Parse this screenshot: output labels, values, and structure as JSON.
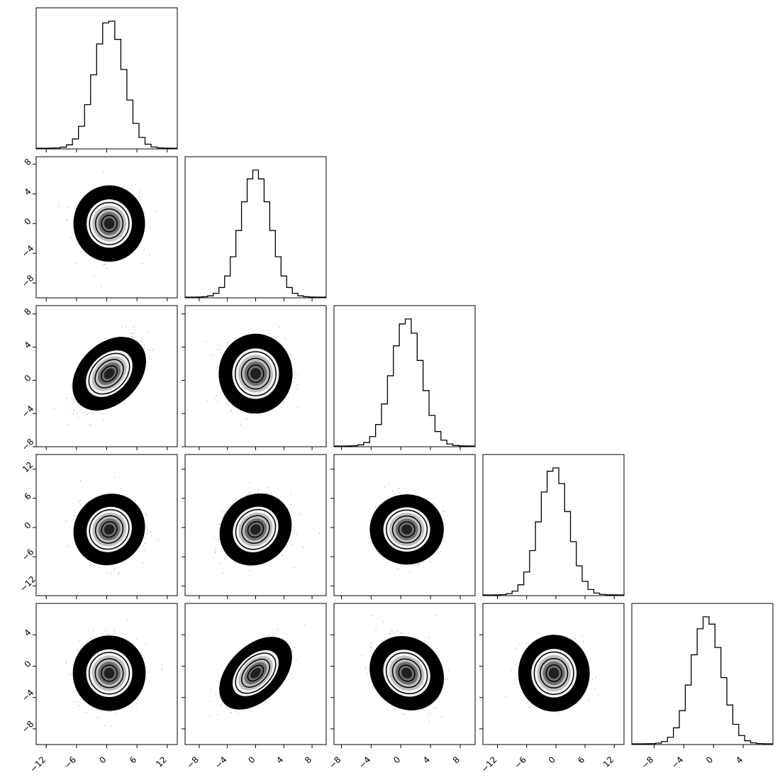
{
  "chart_data": {
    "type": "corner",
    "title": "",
    "grid": false,
    "parameters": [
      {
        "xlim": [
          -14,
          14
        ],
        "ylim": [
          -13,
          14
        ],
        "xticks": [
          -12,
          -6,
          0,
          6,
          12
        ],
        "yticks": [
          -12,
          -6,
          0,
          6,
          12
        ],
        "mean": 0.5,
        "sd": 2.9,
        "binw": 1.2
      },
      {
        "xlim": [
          -10,
          10
        ],
        "ylim": [
          -10,
          9
        ],
        "xticks": [
          -8,
          -4,
          0,
          4,
          8
        ],
        "yticks": [
          -8,
          -4,
          0,
          4,
          8
        ],
        "mean": 0.0,
        "sd": 2.1,
        "binw": 0.8
      },
      {
        "xlim": [
          -9,
          10
        ],
        "ylim": [
          -8,
          9
        ],
        "xticks": [
          -8,
          -4,
          0,
          4,
          8
        ],
        "yticks": [
          -8,
          -4,
          0,
          4,
          8
        ],
        "mean": 0.8,
        "sd": 2.0,
        "binw": 0.8
      },
      {
        "xlim": [
          -15,
          14
        ],
        "ylim": [
          -14,
          15
        ],
        "xticks": [
          -12,
          -6,
          0,
          6,
          12
        ],
        "yticks": [
          -12,
          -6,
          0,
          6,
          12
        ],
        "mean": -0.4,
        "sd": 3.0,
        "binw": 1.2
      },
      {
        "xlim": [
          -11,
          8
        ],
        "ylim": [
          -10,
          8
        ],
        "xticks": [
          -8,
          -4,
          0,
          4
        ],
        "yticks": [
          -8,
          -4,
          0,
          4
        ],
        "mean": -0.9,
        "sd": 2.0,
        "binw": 0.8
      }
    ],
    "correlations": [
      [
        1,
        0.0,
        0.6,
        0.1,
        0.05
      ],
      [
        0.0,
        1,
        0.05,
        0.15,
        0.65
      ],
      [
        0.6,
        0.05,
        1,
        -0.05,
        -0.25
      ],
      [
        0.1,
        0.15,
        -0.05,
        1,
        0.0
      ],
      [
        0.05,
        0.65,
        -0.25,
        0.0,
        1
      ]
    ],
    "contour_levels_sigma": [
      0.5,
      1.0,
      1.5,
      2.0
    ]
  }
}
